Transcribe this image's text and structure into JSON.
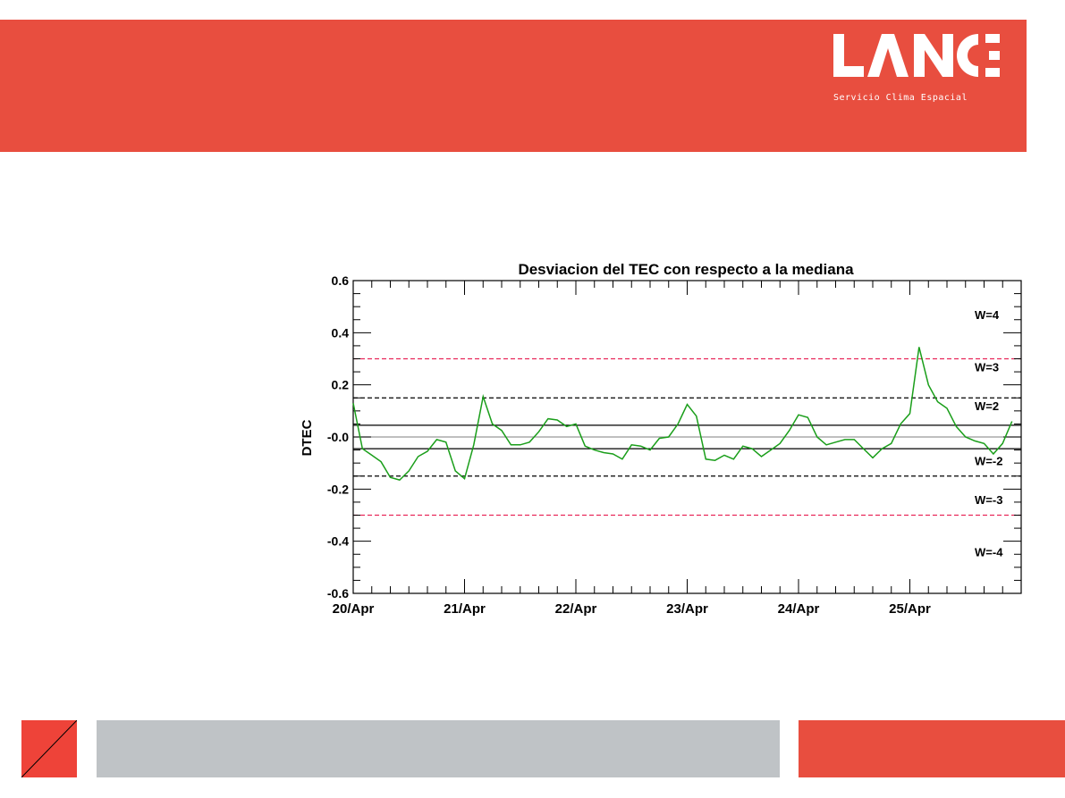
{
  "brand": {
    "logo_text": "LANCE",
    "subtitle": "Servicio Clima Espacial",
    "banner_color": "#e84e3f",
    "footer_gray": "#bfc3c6"
  },
  "chart_data": {
    "type": "line",
    "title": "Desviacion del TEC con respecto a la mediana",
    "xlabel": "",
    "ylabel": "DTEC",
    "ylim": [
      -0.6,
      0.6
    ],
    "xlim": [
      0,
      6
    ],
    "y_ticks": [
      {
        "value": 0.6,
        "label": "0.6"
      },
      {
        "value": 0.4,
        "label": "0.4"
      },
      {
        "value": 0.2,
        "label": "0.2"
      },
      {
        "value": 0.0,
        "label": "-0.0"
      },
      {
        "value": -0.2,
        "label": "-0.2"
      },
      {
        "value": -0.4,
        "label": "-0.4"
      },
      {
        "value": -0.6,
        "label": "-0.6"
      }
    ],
    "x_ticks": [
      {
        "value": 0,
        "label": "20/Apr"
      },
      {
        "value": 1,
        "label": "21/Apr"
      },
      {
        "value": 2,
        "label": "22/Apr"
      },
      {
        "value": 3,
        "label": "23/Apr"
      },
      {
        "value": 4,
        "label": "24/Apr"
      },
      {
        "value": 5,
        "label": "25/Apr"
      }
    ],
    "reference_lines": [
      {
        "y": 0.3,
        "style": "dashed",
        "color": "#e8285a"
      },
      {
        "y": 0.15,
        "style": "dashed",
        "color": "#000000"
      },
      {
        "y": 0.045,
        "style": "solid",
        "color": "#000000"
      },
      {
        "y": 0.0,
        "style": "solid",
        "color": "#999999"
      },
      {
        "y": -0.045,
        "style": "solid",
        "color": "#000000"
      },
      {
        "y": -0.15,
        "style": "dashed",
        "color": "#000000"
      },
      {
        "y": -0.3,
        "style": "dashed",
        "color": "#e8285a"
      }
    ],
    "level_labels": [
      {
        "y": 0.47,
        "label": "W=4"
      },
      {
        "y": 0.27,
        "label": "W=3"
      },
      {
        "y": 0.12,
        "label": "W=2"
      },
      {
        "y": -0.09,
        "label": "W=-2"
      },
      {
        "y": -0.24,
        "label": "W=-3"
      },
      {
        "y": -0.44,
        "label": "W=-4"
      }
    ],
    "series": [
      {
        "color": "#1a9e1a",
        "x": [
          0,
          0.083,
          0.167,
          0.25,
          0.333,
          0.417,
          0.5,
          0.583,
          0.667,
          0.75,
          0.833,
          0.917,
          1.0,
          1.083,
          1.167,
          1.25,
          1.333,
          1.417,
          1.5,
          1.583,
          1.667,
          1.75,
          1.833,
          1.917,
          2.0,
          2.083,
          2.167,
          2.25,
          2.333,
          2.417,
          2.5,
          2.583,
          2.667,
          2.75,
          2.833,
          2.917,
          3.0,
          3.083,
          3.167,
          3.25,
          3.333,
          3.417,
          3.5,
          3.583,
          3.667,
          3.75,
          3.833,
          3.917,
          4.0,
          4.083,
          4.167,
          4.25,
          4.333,
          4.417,
          4.5,
          4.583,
          4.667,
          4.75,
          4.833,
          4.917,
          5.0,
          5.083,
          5.167,
          5.25,
          5.333,
          5.417,
          5.5,
          5.583,
          5.667,
          5.75,
          5.833,
          5.917
        ],
        "values": [
          0.13,
          -0.045,
          -0.07,
          -0.095,
          -0.155,
          -0.165,
          -0.13,
          -0.075,
          -0.055,
          -0.01,
          -0.02,
          -0.13,
          -0.16,
          -0.03,
          0.155,
          0.05,
          0.025,
          -0.03,
          -0.03,
          -0.02,
          0.02,
          0.07,
          0.065,
          0.04,
          0.05,
          -0.035,
          -0.05,
          -0.06,
          -0.065,
          -0.085,
          -0.03,
          -0.035,
          -0.05,
          -0.005,
          0.0,
          0.05,
          0.125,
          0.08,
          -0.085,
          -0.09,
          -0.07,
          -0.085,
          -0.035,
          -0.045,
          -0.075,
          -0.05,
          -0.025,
          0.025,
          0.085,
          0.075,
          0.0,
          -0.03,
          -0.02,
          -0.01,
          -0.01,
          -0.045,
          -0.08,
          -0.045,
          -0.025,
          0.05,
          0.09,
          0.345,
          0.2,
          0.135,
          0.11,
          0.04,
          0.0,
          -0.015,
          -0.025,
          -0.065,
          -0.025,
          0.06
        ]
      }
    ]
  }
}
